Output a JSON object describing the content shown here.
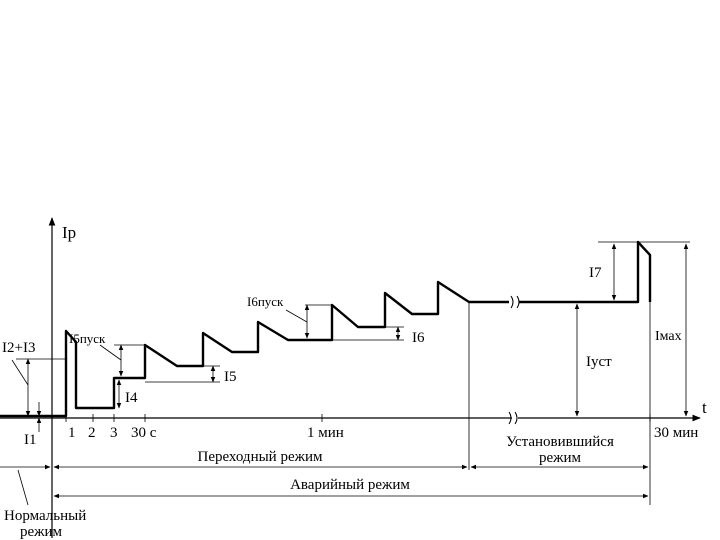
{
  "axes": {
    "y_label": "Iр",
    "x_label": "t"
  },
  "ticks": [
    "1",
    "2",
    "3",
    "30 с",
    "1 мин",
    "30 мин"
  ],
  "currents": {
    "i1": "I1",
    "i23": "I2+I3",
    "i4": "I4",
    "i5": "I5",
    "i5start": "I5пуск",
    "i6": "I6",
    "i6start": "I6пуск",
    "i7": "I7",
    "iust": "Iуст",
    "imax": "Iмах"
  },
  "modes": {
    "transient": "Переходный режим",
    "steady_line1": "Установившийся",
    "steady_line2": "режим",
    "emergency": "Аварийный режим",
    "normal_line1": "Нормальный",
    "normal_line2": "режим"
  }
}
